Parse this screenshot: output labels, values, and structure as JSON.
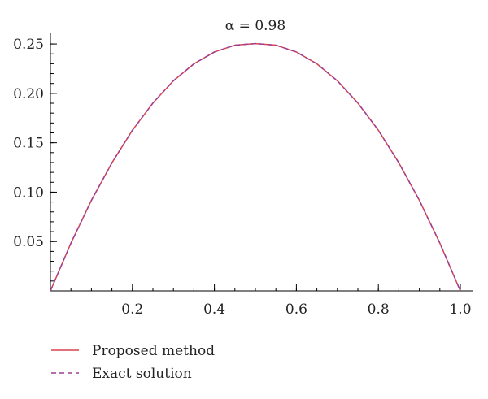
{
  "chart_data": {
    "type": "line",
    "title": "α = 0.98",
    "xlabel": "",
    "ylabel": "",
    "xlim": [
      0,
      1.0
    ],
    "ylim": [
      0,
      0.255
    ],
    "x_ticks": [
      0.2,
      0.4,
      0.6,
      0.8,
      1.0
    ],
    "x_tick_labels": [
      "0.2",
      "0.4",
      "0.6",
      "0.8",
      "1.0"
    ],
    "y_ticks": [
      0.05,
      0.1,
      0.15,
      0.2,
      0.25
    ],
    "y_tick_labels": [
      "0.05",
      "0.10",
      "0.15",
      "0.20",
      "0.25"
    ],
    "grid": false,
    "legend_position": "bottom-left",
    "x": [
      0,
      0.05,
      0.1,
      0.15,
      0.2,
      0.25,
      0.3,
      0.35,
      0.4,
      0.45,
      0.5,
      0.55,
      0.6,
      0.65,
      0.7,
      0.75,
      0.8,
      0.85,
      0.9,
      0.95,
      1.0
    ],
    "series": [
      {
        "name": "Proposed method",
        "color": "#d9434f",
        "style": "solid",
        "values": [
          0,
          0.0484,
          0.0917,
          0.1297,
          0.1626,
          0.1902,
          0.2127,
          0.2299,
          0.2419,
          0.2488,
          0.2504,
          0.2488,
          0.2419,
          0.2299,
          0.2127,
          0.1902,
          0.1626,
          0.1297,
          0.0917,
          0.0484,
          0
        ]
      },
      {
        "name": "Exact solution",
        "color": "#9b3f96",
        "style": "dashed",
        "values": [
          0,
          0.0484,
          0.0917,
          0.1297,
          0.1626,
          0.1902,
          0.2127,
          0.2299,
          0.2419,
          0.2488,
          0.2504,
          0.2488,
          0.2419,
          0.2299,
          0.2127,
          0.1902,
          0.1626,
          0.1297,
          0.0917,
          0.0484,
          0
        ]
      }
    ]
  }
}
